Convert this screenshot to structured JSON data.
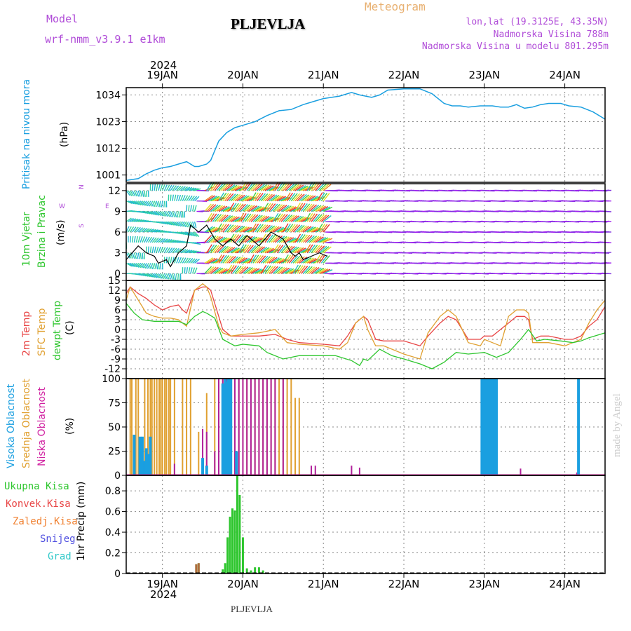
{
  "header": {
    "model_label": "Model",
    "model_name": "wrf-nmm_v3.9.1 e1km",
    "station": "PLJEVLJA",
    "title": "Meteogram",
    "coords": "lon,lat (19.3125E, 43.35N)",
    "elevation": "Nadmorska Visina 788m",
    "model_elevation": "Nadmorska Visina u modelu 801.295m"
  },
  "axes": {
    "year": "2024",
    "days": [
      "19JAN",
      "20JAN",
      "21JAN",
      "22JAN",
      "23JAN",
      "24JAN"
    ]
  },
  "footer": {
    "station": "PLJEVLJA",
    "watermark": "made by Angel"
  },
  "colors": {
    "pressure": "#1a9fe0",
    "temp2m": "#e84545",
    "sfc": "#e0a030",
    "dewpt": "#2ec62e",
    "high_cloud": "#1a9fe0",
    "mid_cloud": "#e0a030",
    "low_cloud": "#b0209a",
    "total_precip": "#2ec62e",
    "conv_precip": "#e84545",
    "frz_precip": "#f08030",
    "snow": "#5050e0",
    "hail": "#30c8c8"
  },
  "chart_data": [
    {
      "type": "line",
      "panel": "pressure",
      "title": "Pritisak na nivou mora",
      "ylabel": "(hPa)",
      "yticks": [
        1001,
        1012,
        1023,
        1034
      ],
      "ylim": [
        998,
        1037
      ],
      "xlim_days": [
        18.55,
        24.5
      ],
      "series": [
        {
          "x": [
            18.55,
            18.7,
            18.8,
            18.9,
            19.0,
            19.1,
            19.2,
            19.3,
            19.4,
            19.45,
            19.55,
            19.6,
            19.7,
            19.8,
            19.9,
            20.0,
            20.15,
            20.3,
            20.45,
            20.6,
            20.75,
            20.9,
            21.0,
            21.2,
            21.35,
            21.45,
            21.6,
            21.7,
            21.8,
            22.0,
            22.2,
            22.35,
            22.5,
            22.6,
            22.7,
            22.8,
            22.95,
            23.1,
            23.2,
            23.3,
            23.4,
            23.5,
            23.6,
            23.7,
            23.8,
            23.95,
            24.05,
            24.2,
            24.35,
            24.5
          ],
          "y": [
            998.8,
            999.5,
            1001.5,
            1003,
            1004,
            1004.5,
            1005.5,
            1006.5,
            1004.5,
            1004.5,
            1005.5,
            1007,
            1015,
            1018.5,
            1020.5,
            1021.5,
            1023,
            1025.5,
            1027.5,
            1028,
            1030,
            1031.5,
            1032.5,
            1033.5,
            1035,
            1034,
            1033,
            1034,
            1036,
            1036.5,
            1036.5,
            1034.5,
            1030.5,
            1029.5,
            1029.5,
            1029,
            1029.5,
            1029.5,
            1029,
            1029,
            1030,
            1028.5,
            1029,
            1030,
            1030.5,
            1030.5,
            1029.5,
            1029,
            1027,
            1024
          ]
        }
      ]
    },
    {
      "type": "scatter",
      "panel": "wind",
      "title": "10m Vjetar Brzina i Pravac",
      "ylabel": "(m/s)",
      "yticks": [
        0,
        3,
        6,
        9,
        12
      ],
      "ylim": [
        -1,
        13
      ],
      "compass": [
        "N",
        "E",
        "S",
        "W"
      ],
      "speed_series": {
        "x": [
          18.55,
          18.7,
          18.8,
          18.9,
          18.95,
          19.05,
          19.1,
          19.2,
          19.3,
          19.35,
          19.45,
          19.55,
          19.65,
          19.75,
          19.85,
          19.95,
          20.05,
          20.2,
          20.35,
          20.5,
          20.6,
          20.65,
          20.7,
          20.75,
          20.85,
          20.95,
          21.05
        ],
        "y": [
          2,
          4,
          3,
          2.5,
          1.5,
          2,
          1,
          3,
          4,
          7,
          6,
          7,
          5,
          4,
          5,
          4,
          5.5,
          4,
          6,
          5,
          3,
          2.5,
          3,
          2,
          2.5,
          3,
          2.5
        ]
      }
    },
    {
      "type": "line",
      "panel": "temperature",
      "title": "2m Temp / SFC Temp / dewpt Temp",
      "ylabel": "(C)",
      "yticks": [
        -12,
        -9,
        -6,
        -3,
        0,
        3,
        6,
        9,
        12,
        15
      ],
      "ylim": [
        -15,
        15
      ],
      "series": [
        {
          "name": "2m Temp",
          "x": [
            18.55,
            18.6,
            18.7,
            18.8,
            18.9,
            19.0,
            19.1,
            19.2,
            19.25,
            19.3,
            19.4,
            19.5,
            19.55,
            19.6,
            19.7,
            19.75,
            19.85,
            20.0,
            20.2,
            20.4,
            20.55,
            20.7,
            21.0,
            21.2,
            21.3,
            21.4,
            21.5,
            21.55,
            21.65,
            21.75,
            22.0,
            22.2,
            22.3,
            22.45,
            22.55,
            22.65,
            22.8,
            22.95,
            23.0,
            23.1,
            23.2,
            23.3,
            23.4,
            23.5,
            23.55,
            23.6,
            23.7,
            23.8,
            24.0,
            24.1,
            24.2,
            24.3,
            24.4,
            24.5
          ],
          "y": [
            11,
            13,
            11,
            9.5,
            7.5,
            6,
            7,
            7.5,
            6,
            5,
            12,
            13,
            13,
            12,
            4,
            0,
            -2,
            -2,
            -2,
            -1.5,
            -3,
            -4,
            -4.5,
            -5,
            -2,
            2,
            4,
            3,
            -3,
            -3.5,
            -3.5,
            -5,
            -2,
            2,
            4,
            3,
            -3,
            -3,
            -2,
            -2,
            0,
            2,
            4,
            4,
            3,
            -3,
            -2,
            -2,
            -3,
            -3,
            -2,
            1,
            3,
            7
          ]
        },
        {
          "name": "SFC Temp",
          "x": [
            18.55,
            18.6,
            18.7,
            18.8,
            18.9,
            19.0,
            19.1,
            19.2,
            19.25,
            19.3,
            19.4,
            19.5,
            19.55,
            19.6,
            19.7,
            19.75,
            19.85,
            20.0,
            20.2,
            20.4,
            20.55,
            20.7,
            21.0,
            21.2,
            21.3,
            21.4,
            21.5,
            21.55,
            21.65,
            21.75,
            22.0,
            22.2,
            22.3,
            22.45,
            22.55,
            22.65,
            22.8,
            22.95,
            23.0,
            23.1,
            23.2,
            23.3,
            23.4,
            23.5,
            23.55,
            23.6,
            23.7,
            23.8,
            24.0,
            24.1,
            24.2,
            24.3,
            24.4,
            24.5
          ],
          "y": [
            9,
            13,
            9,
            5,
            4,
            3.5,
            3.5,
            3,
            2,
            1,
            12,
            14,
            13,
            10,
            1,
            -1,
            -2,
            -1.5,
            -1,
            0,
            -4,
            -4.5,
            -5,
            -6,
            -4,
            2,
            4,
            0,
            -5,
            -5,
            -7.5,
            -9,
            -1,
            4,
            6,
            4,
            -4,
            -5,
            -3,
            -4,
            -5,
            4,
            6,
            6,
            5,
            -4,
            -4,
            -4,
            -5,
            -4,
            -3,
            2,
            6,
            9
          ]
        },
        {
          "name": "dewpt Temp",
          "x": [
            18.55,
            18.65,
            18.75,
            18.9,
            19.0,
            19.2,
            19.3,
            19.4,
            19.5,
            19.55,
            19.65,
            19.75,
            19.9,
            20.0,
            20.2,
            20.3,
            20.5,
            20.7,
            21.0,
            21.15,
            21.35,
            21.45,
            21.5,
            21.55,
            21.7,
            21.85,
            22.0,
            22.2,
            22.35,
            22.5,
            22.65,
            22.8,
            23.0,
            23.15,
            23.3,
            23.45,
            23.55,
            23.65,
            23.75,
            23.95,
            24.1,
            24.2,
            24.3,
            24.5
          ],
          "y": [
            8,
            5,
            3,
            2.5,
            2.5,
            2.5,
            1.5,
            4,
            5.5,
            5,
            3.5,
            -3,
            -5,
            -4.5,
            -5,
            -7,
            -9,
            -8,
            -8,
            -8,
            -9.5,
            -11,
            -9,
            -9.5,
            -6,
            -8,
            -9,
            -10.5,
            -12,
            -10,
            -7,
            -7.5,
            -7,
            -8.5,
            -7,
            -3,
            0,
            -3.5,
            -3,
            -3.5,
            -4,
            -3.5,
            -2.5,
            -1
          ]
        }
      ]
    },
    {
      "type": "bar",
      "panel": "clouds",
      "title": "Visoka Oblacnost / Srednja Oblacnost / Niska Oblacnost",
      "ylabel": "(%)",
      "yticks": [
        0,
        25,
        50,
        75,
        100
      ],
      "ylim": [
        0,
        100
      ],
      "series": [
        {
          "name": "Visoka Oblacnost",
          "x": [
            18.65,
            18.72,
            18.75,
            18.78,
            18.8,
            18.82,
            18.85,
            19.5,
            19.55,
            19.75,
            19.78,
            19.8,
            19.82,
            19.85,
            19.92,
            22.97,
            22.99,
            23.01,
            23.03,
            23.05,
            23.07,
            23.09,
            23.11,
            23.13,
            23.15,
            24.17
          ],
          "y": [
            42,
            40,
            40,
            15,
            28,
            22,
            40,
            18,
            10,
            95,
            100,
            97,
            100,
            100,
            25,
            100,
            100,
            100,
            100,
            100,
            100,
            100,
            100,
            100,
            100,
            100
          ]
        },
        {
          "name": "Srednja Oblacnost",
          "x": [
            18.6,
            18.62,
            18.67,
            18.7,
            18.78,
            18.82,
            18.85,
            18.87,
            18.9,
            18.93,
            18.96,
            18.98,
            19.0,
            19.03,
            19.05,
            19.08,
            19.1,
            19.15,
            19.25,
            19.3,
            19.35,
            19.45,
            19.55,
            19.65,
            19.7,
            19.75,
            19.8,
            19.82,
            19.85,
            19.9,
            19.95,
            20.0,
            20.05,
            20.1,
            20.15,
            20.2,
            20.25,
            20.3,
            20.35,
            20.4,
            20.45,
            20.5,
            20.55,
            20.6,
            20.65,
            20.7,
            24.17
          ],
          "y": [
            100,
            100,
            100,
            100,
            100,
            100,
            100,
            100,
            100,
            100,
            100,
            100,
            100,
            100,
            100,
            100,
            100,
            100,
            100,
            100,
            100,
            45,
            85,
            100,
            100,
            100,
            100,
            100,
            100,
            100,
            100,
            100,
            100,
            100,
            100,
            100,
            100,
            100,
            100,
            100,
            100,
            100,
            100,
            100,
            80,
            80,
            15
          ]
        },
        {
          "name": "Niska Oblacnost",
          "x": [
            19.15,
            19.5,
            19.55,
            19.65,
            19.7,
            19.75,
            19.8,
            19.85,
            19.9,
            19.95,
            20.0,
            20.05,
            20.1,
            20.15,
            20.2,
            20.25,
            20.3,
            20.35,
            20.4,
            20.5,
            20.85,
            20.9,
            21.35,
            21.45,
            23.45,
            24.15
          ],
          "y": [
            12,
            48,
            45,
            25,
            100,
            100,
            100,
            100,
            100,
            100,
            100,
            100,
            100,
            100,
            100,
            100,
            100,
            100,
            100,
            100,
            10,
            10,
            10,
            8,
            7,
            3
          ]
        }
      ]
    },
    {
      "type": "bar",
      "panel": "precipitation",
      "title": "1hr Precip (mm)",
      "ylabel": "1hr Precip (mm)",
      "yticks": [
        0,
        0.2,
        0.4,
        0.6,
        0.8
      ],
      "ylim": [
        0,
        0.95
      ],
      "legend": [
        "Ukupna Kisa",
        "Konvek.Kisa",
        "Zaledj.Kisa",
        "Snijeg",
        "Grad"
      ],
      "series": [
        {
          "name": "Ukupna Kisa",
          "x": [
            19.42,
            19.45,
            19.75,
            19.78,
            19.81,
            19.84,
            19.87,
            19.9,
            19.93,
            19.96,
            20.0,
            20.05,
            20.1,
            20.15,
            20.2,
            20.25
          ],
          "y": [
            0.09,
            0.1,
            0.04,
            0.1,
            0.35,
            0.55,
            0.63,
            0.61,
            0.95,
            0.76,
            0.35,
            0.05,
            0.03,
            0.06,
            0.06,
            0.03
          ]
        },
        {
          "name": "Konvek.Kisa",
          "x": [
            19.42,
            19.45
          ],
          "y": [
            0.09,
            0.1
          ]
        }
      ]
    }
  ]
}
